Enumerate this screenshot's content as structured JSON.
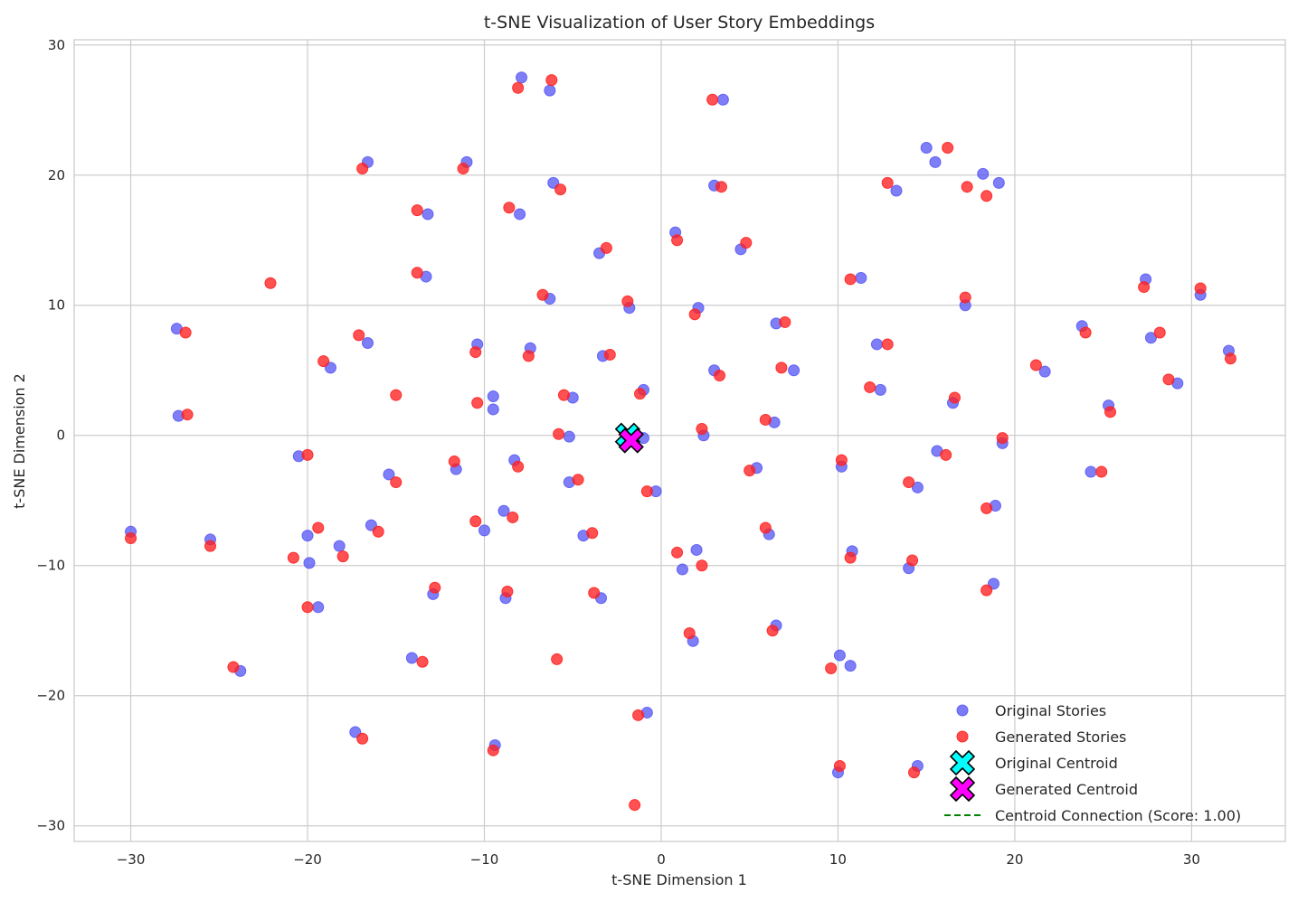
{
  "chart_data": {
    "type": "scatter",
    "title": "t-SNE Visualization of User Story Embeddings",
    "xlabel": "t-SNE Dimension 1",
    "ylabel": "t-SNE Dimension 2",
    "xlim": [
      -33.2,
      35.3
    ],
    "ylim": [
      -31.2,
      30.4
    ],
    "xticks": [
      -30,
      -20,
      -10,
      0,
      10,
      20,
      30
    ],
    "yticks": [
      -30,
      -20,
      -10,
      0,
      10,
      20,
      30
    ],
    "grid": true,
    "legend_position": "lower-right",
    "series": [
      {
        "name": "Original Stories",
        "color": "#5a5af5",
        "marker": "circle",
        "points": [
          [
            -30.0,
            -7.4
          ],
          [
            -27.4,
            8.2
          ],
          [
            -27.3,
            1.5
          ],
          [
            -25.5,
            -8.0
          ],
          [
            -23.8,
            -18.1
          ],
          [
            -20.5,
            -1.6
          ],
          [
            -20.0,
            -7.7
          ],
          [
            -19.9,
            -9.8
          ],
          [
            -19.4,
            -13.2
          ],
          [
            -18.7,
            5.2
          ],
          [
            -18.2,
            -8.5
          ],
          [
            -17.3,
            -22.8
          ],
          [
            -16.6,
            21.0
          ],
          [
            -16.6,
            7.1
          ],
          [
            -16.4,
            -6.9
          ],
          [
            -15.4,
            -3.0
          ],
          [
            -14.1,
            -17.1
          ],
          [
            -13.2,
            17.0
          ],
          [
            -13.3,
            12.2
          ],
          [
            -12.9,
            -12.2
          ],
          [
            -11.6,
            -2.6
          ],
          [
            -11.0,
            21.0
          ],
          [
            -10.4,
            7.0
          ],
          [
            -10.0,
            -7.3
          ],
          [
            -9.5,
            3.0
          ],
          [
            -9.5,
            2.0
          ],
          [
            -9.4,
            -23.8
          ],
          [
            -8.9,
            -5.8
          ],
          [
            -8.8,
            -12.5
          ],
          [
            -8.3,
            -1.9
          ],
          [
            -8.0,
            17.0
          ],
          [
            -7.9,
            27.5
          ],
          [
            -7.4,
            6.7
          ],
          [
            -6.3,
            26.5
          ],
          [
            -6.3,
            10.5
          ],
          [
            -6.1,
            19.4
          ],
          [
            -5.2,
            -0.1
          ],
          [
            -5.2,
            -3.6
          ],
          [
            -5.0,
            2.9
          ],
          [
            -4.4,
            -7.7
          ],
          [
            -3.5,
            14.0
          ],
          [
            -3.4,
            -12.5
          ],
          [
            -3.3,
            6.1
          ],
          [
            -1.8,
            9.8
          ],
          [
            -1.0,
            -0.2
          ],
          [
            -1.0,
            3.5
          ],
          [
            -0.8,
            -21.3
          ],
          [
            -0.3,
            -4.3
          ],
          [
            0.8,
            15.6
          ],
          [
            1.2,
            -10.3
          ],
          [
            1.8,
            -15.8
          ],
          [
            2.0,
            -8.8
          ],
          [
            2.1,
            9.8
          ],
          [
            2.4,
            0.0
          ],
          [
            3.0,
            5.0
          ],
          [
            3.0,
            19.2
          ],
          [
            3.5,
            25.8
          ],
          [
            4.5,
            14.3
          ],
          [
            5.4,
            -2.5
          ],
          [
            6.1,
            -7.6
          ],
          [
            6.4,
            1.0
          ],
          [
            6.5,
            -14.6
          ],
          [
            6.5,
            8.6
          ],
          [
            7.5,
            5.0
          ],
          [
            10.1,
            -16.9
          ],
          [
            10.0,
            -25.9
          ],
          [
            10.2,
            -2.4
          ],
          [
            10.7,
            -17.7
          ],
          [
            10.8,
            -8.9
          ],
          [
            11.3,
            12.1
          ],
          [
            12.2,
            7.0
          ],
          [
            12.4,
            3.5
          ],
          [
            13.3,
            18.8
          ],
          [
            14.0,
            -10.2
          ],
          [
            14.5,
            -4.0
          ],
          [
            14.5,
            -25.4
          ],
          [
            15.0,
            22.1
          ],
          [
            15.5,
            21.0
          ],
          [
            15.6,
            -1.2
          ],
          [
            16.5,
            2.5
          ],
          [
            17.2,
            10.0
          ],
          [
            18.2,
            20.1
          ],
          [
            18.8,
            -11.4
          ],
          [
            18.9,
            -5.4
          ],
          [
            19.1,
            19.4
          ],
          [
            19.3,
            -0.6
          ],
          [
            21.7,
            4.9
          ],
          [
            23.8,
            8.4
          ],
          [
            24.3,
            -2.8
          ],
          [
            25.3,
            2.3
          ],
          [
            27.4,
            12.0
          ],
          [
            27.7,
            7.5
          ],
          [
            29.2,
            4.0
          ],
          [
            30.5,
            10.8
          ],
          [
            32.1,
            6.5
          ]
        ]
      },
      {
        "name": "Generated Stories",
        "color": "#ff2020",
        "marker": "circle",
        "points": [
          [
            -30.0,
            -7.9
          ],
          [
            -26.9,
            7.9
          ],
          [
            -26.8,
            1.6
          ],
          [
            -25.5,
            -8.5
          ],
          [
            -24.2,
            -17.8
          ],
          [
            -22.1,
            11.7
          ],
          [
            -20.8,
            -9.4
          ],
          [
            -20.0,
            -1.5
          ],
          [
            -20.0,
            -13.2
          ],
          [
            -19.4,
            -7.1
          ],
          [
            -19.1,
            5.7
          ],
          [
            -18.0,
            -9.3
          ],
          [
            -17.1,
            7.7
          ],
          [
            -16.9,
            20.5
          ],
          [
            -16.9,
            -23.3
          ],
          [
            -16.0,
            -7.4
          ],
          [
            -15.0,
            3.1
          ],
          [
            -15.0,
            -3.6
          ],
          [
            -13.8,
            17.3
          ],
          [
            -13.8,
            12.5
          ],
          [
            -13.5,
            -17.4
          ],
          [
            -12.8,
            -11.7
          ],
          [
            -11.7,
            -2.0
          ],
          [
            -11.2,
            20.5
          ],
          [
            -10.5,
            -6.6
          ],
          [
            -10.5,
            6.4
          ],
          [
            -10.4,
            2.5
          ],
          [
            -9.5,
            -24.2
          ],
          [
            -8.7,
            -12.0
          ],
          [
            -8.6,
            17.5
          ],
          [
            -8.4,
            -6.3
          ],
          [
            -8.1,
            -2.4
          ],
          [
            -8.1,
            26.7
          ],
          [
            -7.5,
            6.1
          ],
          [
            -6.7,
            10.8
          ],
          [
            -6.2,
            27.3
          ],
          [
            -5.9,
            -17.2
          ],
          [
            -5.8,
            0.1
          ],
          [
            -5.7,
            18.9
          ],
          [
            -5.5,
            3.1
          ],
          [
            -4.7,
            -3.4
          ],
          [
            -3.9,
            -7.5
          ],
          [
            -3.8,
            -12.1
          ],
          [
            -3.1,
            14.4
          ],
          [
            -2.9,
            6.2
          ],
          [
            -1.9,
            10.3
          ],
          [
            -1.5,
            -28.4
          ],
          [
            -1.3,
            -21.5
          ],
          [
            -1.2,
            3.2
          ],
          [
            -0.8,
            -4.3
          ],
          [
            0.9,
            15.0
          ],
          [
            0.9,
            -9.0
          ],
          [
            1.6,
            -15.2
          ],
          [
            1.9,
            9.3
          ],
          [
            2.3,
            -10.0
          ],
          [
            2.3,
            0.5
          ],
          [
            2.9,
            25.8
          ],
          [
            3.3,
            4.6
          ],
          [
            3.4,
            19.1
          ],
          [
            4.8,
            14.8
          ],
          [
            5.0,
            -2.7
          ],
          [
            5.9,
            -7.1
          ],
          [
            5.9,
            1.2
          ],
          [
            6.3,
            -15.0
          ],
          [
            6.8,
            5.2
          ],
          [
            7.0,
            8.7
          ],
          [
            9.6,
            -17.9
          ],
          [
            10.1,
            -25.4
          ],
          [
            10.2,
            -1.9
          ],
          [
            10.7,
            -9.4
          ],
          [
            10.7,
            12.0
          ],
          [
            11.8,
            3.7
          ],
          [
            12.8,
            7.0
          ],
          [
            12.8,
            19.4
          ],
          [
            14.0,
            -3.6
          ],
          [
            14.2,
            -9.6
          ],
          [
            14.3,
            -25.9
          ],
          [
            16.1,
            -1.5
          ],
          [
            16.2,
            22.1
          ],
          [
            16.6,
            2.9
          ],
          [
            17.2,
            10.6
          ],
          [
            17.3,
            19.1
          ],
          [
            18.4,
            18.4
          ],
          [
            18.4,
            -11.9
          ],
          [
            18.4,
            -5.6
          ],
          [
            19.3,
            -0.2
          ],
          [
            21.2,
            5.4
          ],
          [
            24.0,
            7.9
          ],
          [
            24.9,
            -2.8
          ],
          [
            25.4,
            1.8
          ],
          [
            27.3,
            11.4
          ],
          [
            28.2,
            7.9
          ],
          [
            28.7,
            4.3
          ],
          [
            30.5,
            11.3
          ],
          [
            32.2,
            5.9
          ]
        ]
      },
      {
        "name": "Original Centroid",
        "color": "#00ffff",
        "marker": "X",
        "points": [
          [
            -1.9,
            0.0
          ]
        ]
      },
      {
        "name": "Generated Centroid",
        "color": "#ff00ff",
        "marker": "X",
        "points": [
          [
            -1.7,
            -0.4
          ]
        ]
      },
      {
        "name": "Centroid Connection (Score: 1.00)",
        "color": "#008000",
        "marker": "dashed-line",
        "points": [
          [
            -1.9,
            0.0
          ],
          [
            -1.7,
            -0.4
          ]
        ]
      }
    ]
  }
}
